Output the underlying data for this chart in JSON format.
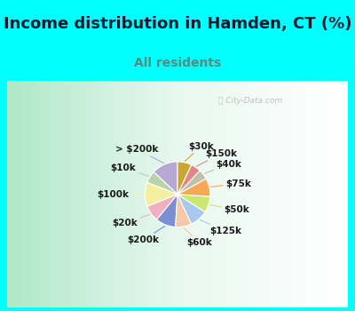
{
  "title": "Income distribution in Hamden, CT (%)",
  "subtitle": "All residents",
  "title_color": "#1a1a2e",
  "subtitle_color": "#5a8a7a",
  "bg_cyan": "#00ffff",
  "watermark": "Ⓢ City-Data.com",
  "labels": [
    "> $200k",
    "$10k",
    "$100k",
    "$20k",
    "$200k",
    "$60k",
    "$125k",
    "$50k",
    "$75k",
    "$40k",
    "$150k",
    "$30k"
  ],
  "values": [
    13,
    6,
    12,
    8,
    10,
    8,
    9,
    8,
    9,
    5,
    5,
    7
  ],
  "colors": [
    "#b5a9d4",
    "#b8d4a8",
    "#f5f0a0",
    "#f0b0c0",
    "#7b8fd4",
    "#f5c8a8",
    "#a8c8f0",
    "#c8e870",
    "#f5a855",
    "#c0c0a8",
    "#e08888",
    "#c8a830"
  ],
  "startangle": 90,
  "title_fontsize": 13,
  "subtitle_fontsize": 10,
  "label_fontsize": 7.5
}
